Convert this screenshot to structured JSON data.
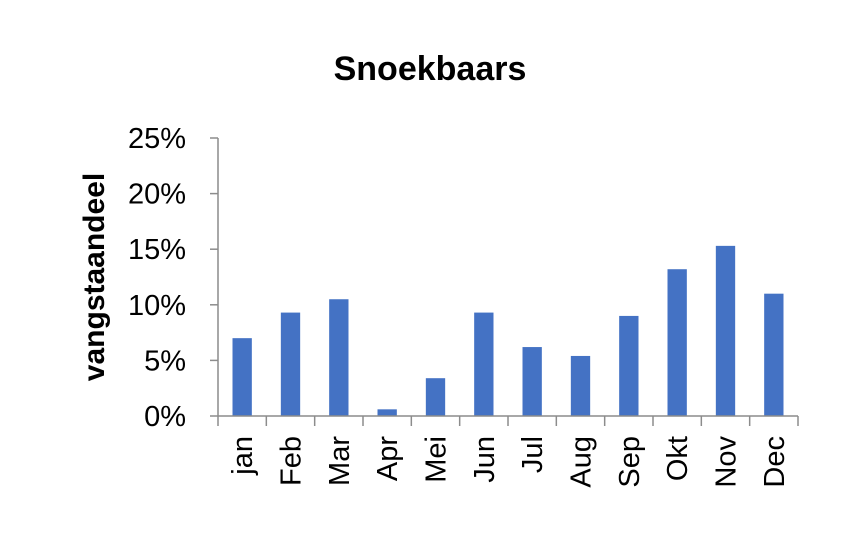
{
  "chart_data": {
    "type": "bar",
    "title": "Snoekbaars",
    "xlabel": "",
    "ylabel": "vangstaandeel",
    "categories": [
      "jan",
      "Feb",
      "Mar",
      "Apr",
      "Mei",
      "Jun",
      "Jul",
      "Aug",
      "Sep",
      "Okt",
      "Nov",
      "Dec"
    ],
    "values": [
      7.0,
      9.3,
      10.5,
      0.6,
      3.4,
      9.3,
      6.2,
      5.4,
      9.0,
      13.2,
      15.3,
      11.0
    ],
    "ylim": [
      0,
      25
    ],
    "yticks": [
      "0%",
      "5%",
      "10%",
      "15%",
      "20%",
      "25%"
    ],
    "grid": false,
    "legend": "none",
    "colors": {
      "bar": "#4472c4",
      "axis": "#8c8c8c",
      "text": "#000000"
    }
  }
}
